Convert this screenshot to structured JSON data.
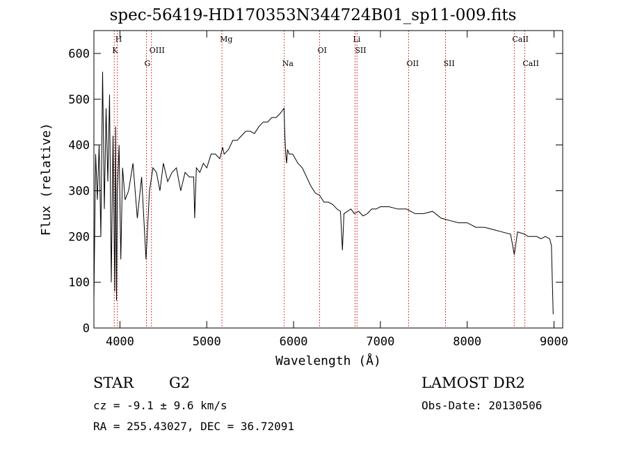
{
  "header": {
    "title": "spec-56419-HD170353N344724B01_sp11-009.fits"
  },
  "info": {
    "object_class": "STAR",
    "subclass": "G2",
    "survey": "LAMOST DR2",
    "cz": "cz = -9.1 ± 9.6 km/s",
    "obs_date": "Obs-Date: 20130506",
    "radec": "RA = 255.43027, DEC =  36.72091"
  },
  "chart_data": {
    "type": "line",
    "title": "spec-56419-HD170353N344724B01_sp11-009.fits",
    "xlabel": "Wavelength (Å)",
    "ylabel": "Flux (relative)",
    "xlim": [
      3700,
      9100
    ],
    "ylim": [
      0,
      650
    ],
    "xticks": [
      4000,
      5000,
      6000,
      7000,
      8000,
      9000
    ],
    "yticks": [
      0,
      100,
      200,
      300,
      400,
      500,
      600
    ],
    "grid": false,
    "line_color": "#000000",
    "marker_color": "#cc0000",
    "series": [
      {
        "x": [
          3700,
          3720,
          3740,
          3760,
          3780,
          3800,
          3820,
          3840,
          3860,
          3880,
          3900,
          3920,
          3940,
          3950,
          3960,
          3970,
          3990,
          4010,
          4030,
          4060,
          4100,
          4150,
          4200,
          4250,
          4300,
          4340,
          4380,
          4420,
          4460,
          4500,
          4550,
          4600,
          4650,
          4700,
          4750,
          4800,
          4850,
          4861,
          4880,
          4920,
          4960,
          5000,
          5050,
          5100,
          5150,
          5183,
          5200,
          5250,
          5300,
          5350,
          5400,
          5450,
          5500,
          5550,
          5600,
          5650,
          5700,
          5750,
          5800,
          5850,
          5890,
          5900,
          5910,
          5920,
          5930,
          5950,
          5990,
          6050,
          6100,
          6150,
          6200,
          6250,
          6300,
          6350,
          6400,
          6450,
          6500,
          6540,
          6563,
          6580,
          6620,
          6660,
          6700,
          6750,
          6800,
          6850,
          6900,
          6950,
          7000,
          7100,
          7200,
          7300,
          7400,
          7500,
          7600,
          7700,
          7800,
          7900,
          8000,
          8100,
          8200,
          8300,
          8400,
          8500,
          8542,
          8580,
          8662,
          8700,
          8750,
          8800,
          8850,
          8900,
          8950,
          8970,
          8990
        ],
        "y": [
          60,
          380,
          280,
          400,
          200,
          560,
          260,
          480,
          320,
          510,
          100,
          420,
          80,
          440,
          60,
          300,
          400,
          150,
          350,
          280,
          300,
          360,
          240,
          330,
          150,
          300,
          350,
          340,
          300,
          360,
          320,
          340,
          350,
          300,
          340,
          330,
          330,
          240,
          350,
          340,
          360,
          350,
          380,
          380,
          370,
          395,
          380,
          390,
          410,
          410,
          420,
          430,
          430,
          425,
          440,
          450,
          450,
          460,
          460,
          470,
          480,
          420,
          380,
          360,
          390,
          380,
          380,
          360,
          350,
          330,
          310,
          295,
          290,
          275,
          275,
          270,
          260,
          255,
          170,
          250,
          255,
          260,
          250,
          255,
          245,
          250,
          260,
          260,
          265,
          265,
          260,
          260,
          250,
          250,
          255,
          240,
          235,
          230,
          230,
          220,
          220,
          215,
          210,
          205,
          160,
          210,
          205,
          200,
          200,
          200,
          195,
          200,
          195,
          180,
          30
        ]
      }
    ],
    "line_markers": [
      {
        "label": "H",
        "x": 3970,
        "row": 0
      },
      {
        "label": "K",
        "x": 3934,
        "row": 1
      },
      {
        "label": "OIII",
        "x": 4363,
        "row": 1
      },
      {
        "label": "G",
        "x": 4305,
        "row": 2
      },
      {
        "label": "Mg",
        "x": 5175,
        "row": 0
      },
      {
        "label": "Na",
        "x": 5893,
        "row": 2
      },
      {
        "label": "OI",
        "x": 6300,
        "row": 1
      },
      {
        "label": "Li",
        "x": 6708,
        "row": 0
      },
      {
        "label": "SII",
        "x": 6731,
        "row": 1
      },
      {
        "label": "OII",
        "x": 7325,
        "row": 2
      },
      {
        "label": "SII",
        "x": 7750,
        "row": 2
      },
      {
        "label": "CaII",
        "x": 8542,
        "row": 0
      },
      {
        "label": "CaII",
        "x": 8662,
        "row": 2
      }
    ]
  }
}
